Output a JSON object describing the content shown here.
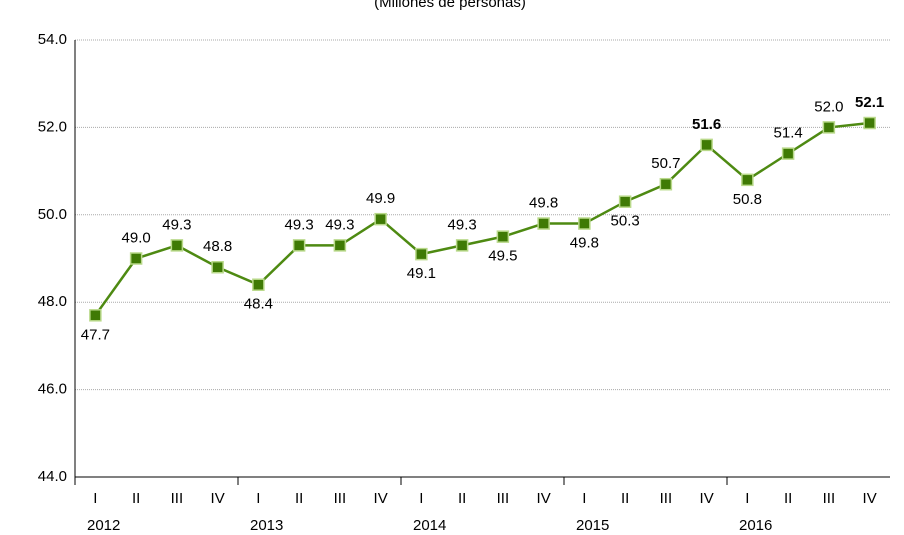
{
  "chart_data": {
    "type": "line",
    "subtitle": "(Millones de personas)",
    "categories": [
      "I",
      "II",
      "III",
      "IV",
      "I",
      "II",
      "III",
      "IV",
      "I",
      "II",
      "III",
      "IV",
      "I",
      "II",
      "III",
      "IV",
      "I",
      "II",
      "III",
      "IV"
    ],
    "year_groups": [
      "2012",
      "2013",
      "2014",
      "2015",
      "2016"
    ],
    "series": [
      {
        "color": "#4e8a12",
        "values": [
          47.7,
          49.0,
          49.3,
          48.8,
          48.4,
          49.3,
          49.3,
          49.9,
          49.1,
          49.3,
          49.5,
          49.8,
          49.8,
          50.3,
          50.7,
          51.6,
          50.8,
          51.4,
          52.0,
          52.1
        ],
        "value_labels": [
          "47.7",
          "49.0",
          "49.3",
          "48.8",
          "48.4",
          "49.3",
          "49.3",
          "49.9",
          "49.1",
          "49.3",
          "49.5",
          "49.8",
          "49.8",
          "50.3",
          "50.7",
          "51.6",
          "50.8",
          "51.4",
          "52.0",
          "52.1"
        ]
      }
    ],
    "ylim": [
      44,
      54
    ],
    "yticks": [
      {
        "value": 44,
        "label": "44.0"
      },
      {
        "value": 46,
        "label": "46.0"
      },
      {
        "value": 48,
        "label": "48.0"
      },
      {
        "value": 50,
        "label": "50.0"
      },
      {
        "value": 52,
        "label": "52.0"
      },
      {
        "value": 54,
        "label": "54.0"
      }
    ],
    "grid": true
  }
}
